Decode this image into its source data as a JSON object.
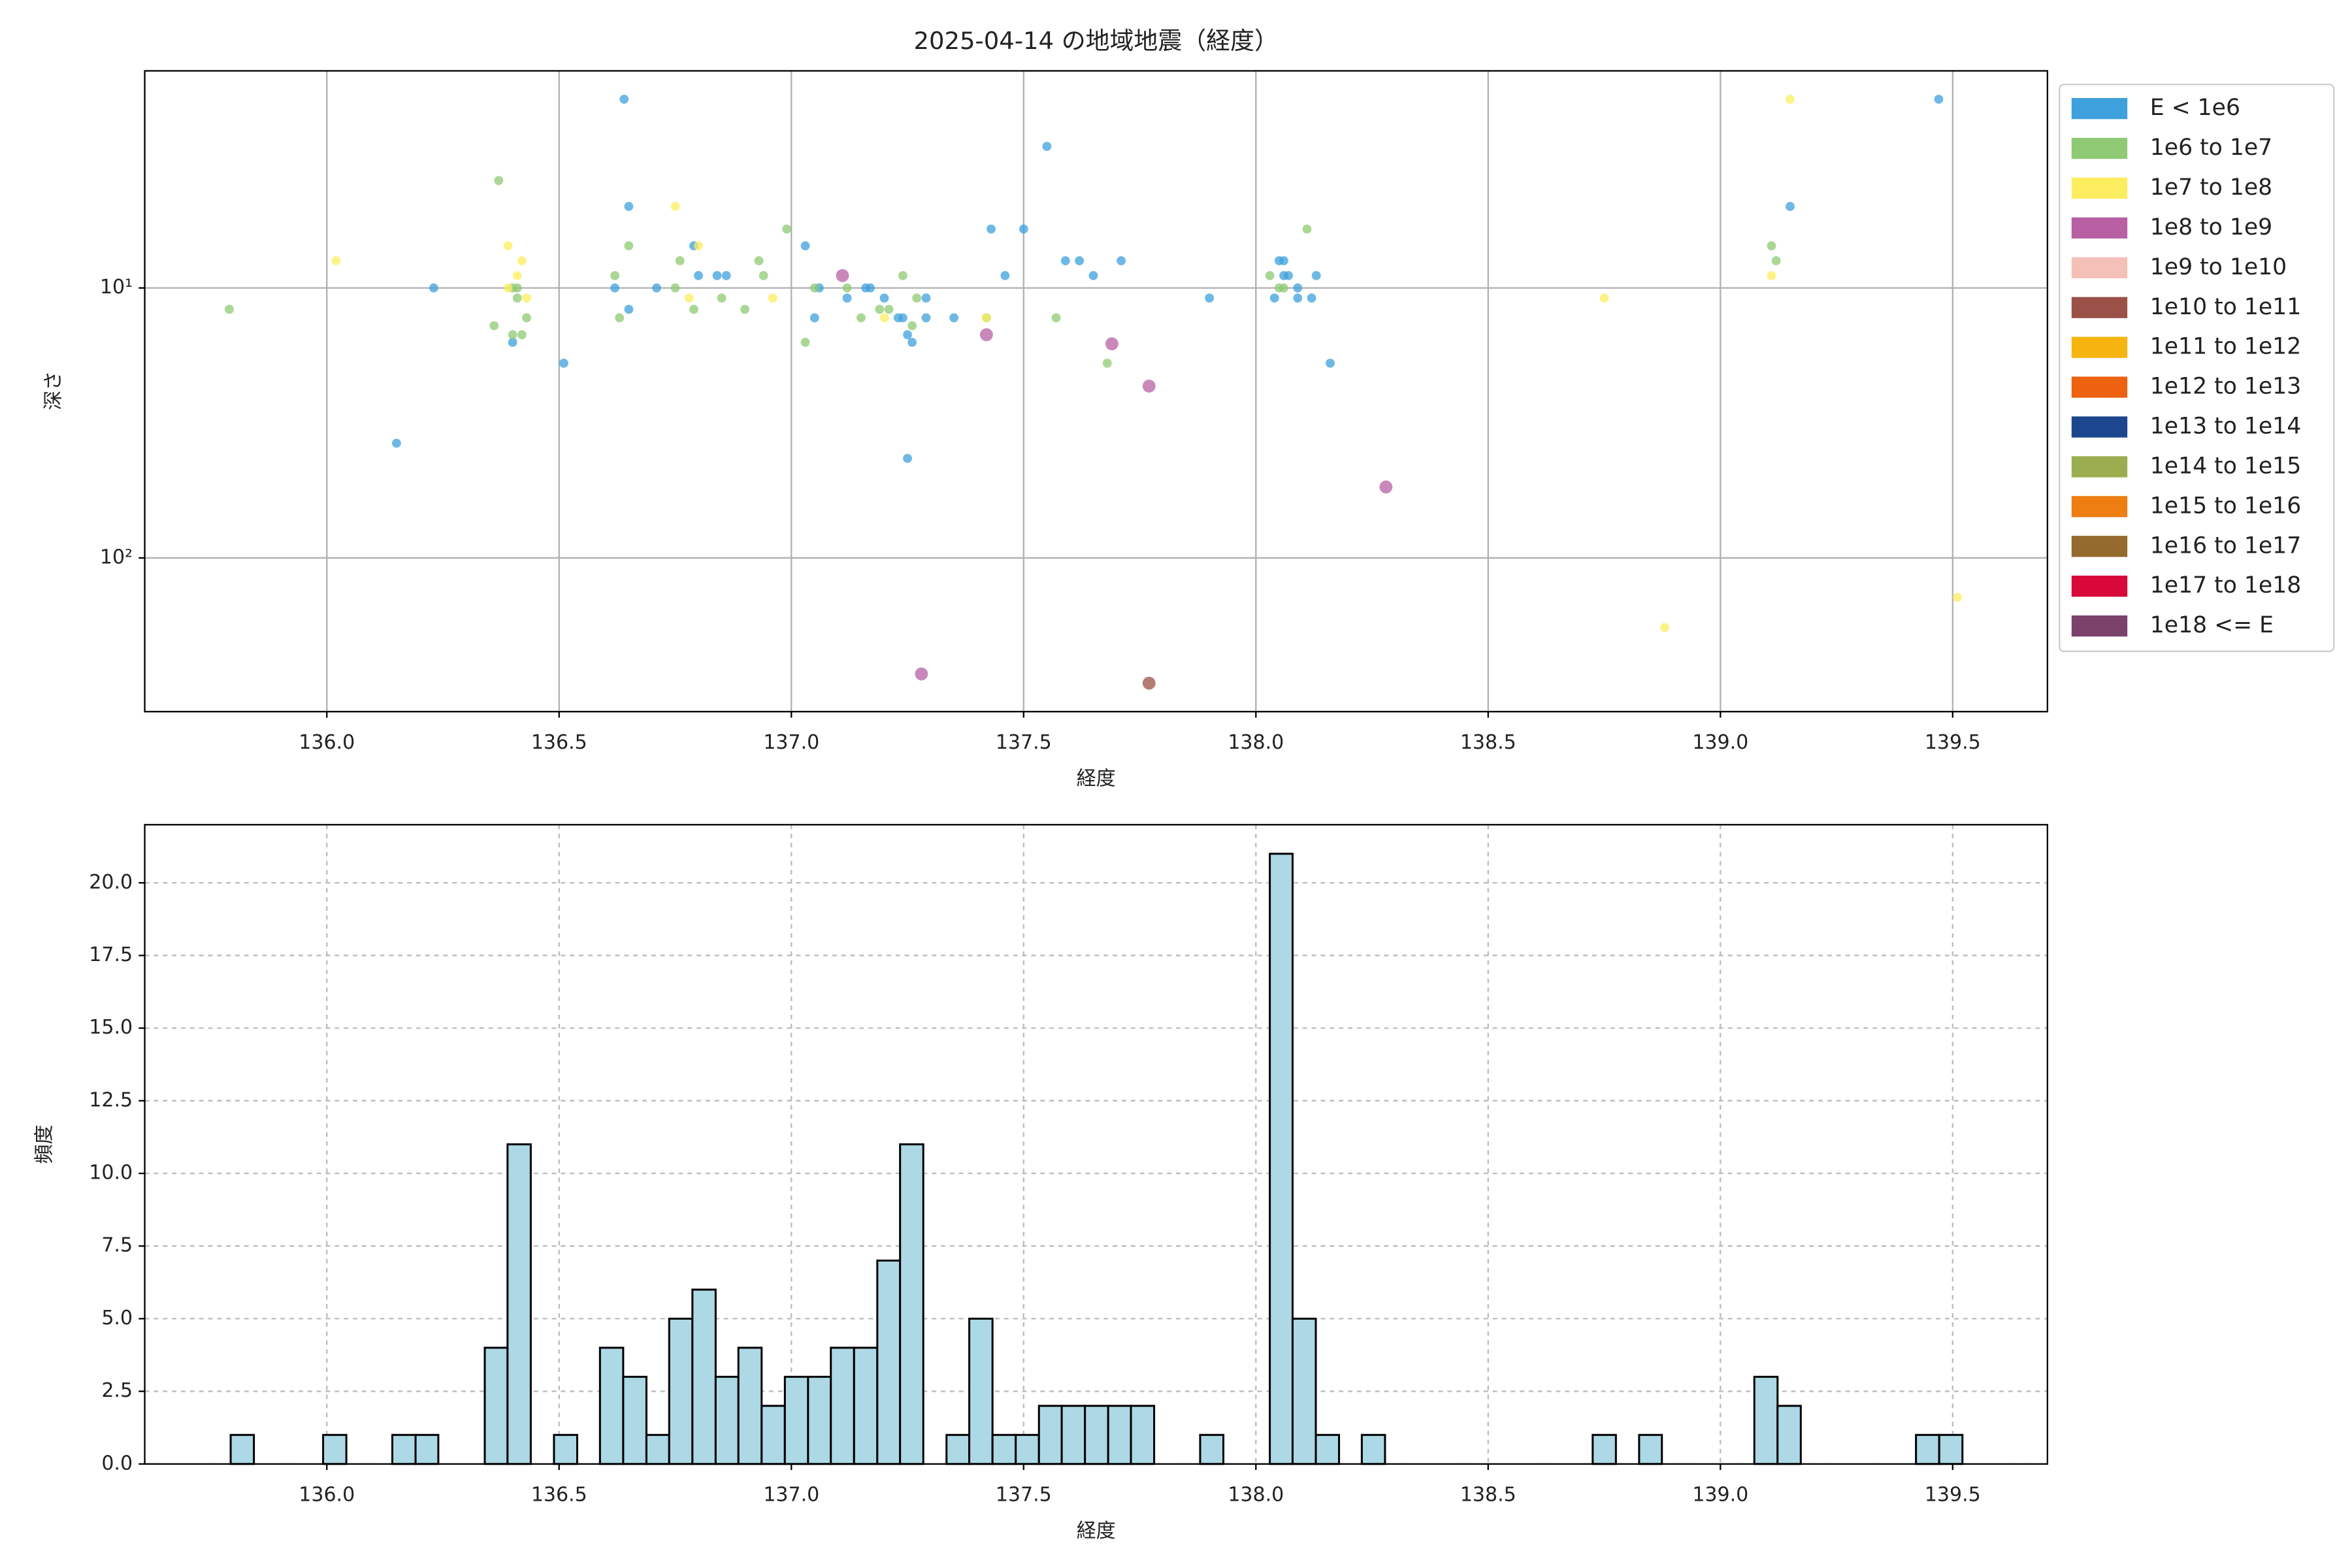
{
  "chart_data": [
    {
      "type": "scatter",
      "title": "2025-04-14 の地域地震（経度）",
      "x_label": "経度",
      "y_label": "深さ",
      "xlim": [
        135.608,
        139.704
      ],
      "xticks": [
        {
          "value": 136,
          "label": "136.0"
        },
        {
          "value": 136.5,
          "label": "136.5"
        },
        {
          "value": 137,
          "label": "137.0"
        },
        {
          "value": 137.5,
          "label": "137.5"
        },
        {
          "value": 138,
          "label": "138.0"
        },
        {
          "value": 138.5,
          "label": "138.5"
        },
        {
          "value": 139,
          "label": "139.0"
        },
        {
          "value": 139.5,
          "label": "139.5"
        }
      ],
      "ylim": [
        1.57,
        371
      ],
      "yscale": "log",
      "y_inverted": true,
      "yticks": [
        {
          "value": 10,
          "label": "10¹"
        },
        {
          "value": 100,
          "label": "10²"
        }
      ],
      "grid": true,
      "grid_style": "solid",
      "legend": "outside-right",
      "series": [
        {
          "name": "E < 1e6",
          "color": "#3ea0dc",
          "x": [
            136.64,
            139.47,
            137.55,
            136.65,
            139.15,
            137.43,
            137.5,
            136.79,
            137.03,
            137.59,
            137.62,
            137.71,
            137.46,
            137.65,
            136.86,
            136.84,
            136.8,
            138.06,
            138.07,
            138.13,
            136.23,
            136.62,
            136.71,
            137.06,
            137.16,
            137.17,
            138.09,
            137.2,
            137.29,
            137.12,
            137.9,
            138.04,
            138.09,
            138.12,
            136.65,
            137.05,
            137.23,
            137.24,
            137.29,
            137.35,
            137.25,
            137.26,
            136.4,
            136.51,
            138.16,
            136.15,
            137.25,
            138.05,
            138.06
          ],
          "values": [
            2.0,
            2.0,
            2.99,
            4.99,
            4.99,
            6.05,
            6.05,
            6.98,
            6.98,
            7.93,
            7.93,
            7.93,
            9.0,
            9.0,
            9.0,
            9.0,
            9.0,
            9.0,
            9.0,
            9.0,
            10,
            10,
            10,
            10,
            10,
            10,
            10,
            10.9,
            10.9,
            10.9,
            10.9,
            10.9,
            10.9,
            10.9,
            12.0,
            12.9,
            12.9,
            12.9,
            12.9,
            12.9,
            14.9,
            15.9,
            15.9,
            19.0,
            19.0,
            37.6,
            42.8,
            7.93,
            7.93
          ]
        },
        {
          "name": "1e6 to 1e7",
          "color": "#8fc973",
          "x": [
            136.37,
            138.11,
            136.99,
            136.65,
            139.11,
            136.93,
            136.76,
            139.12,
            136.62,
            136.94,
            137.24,
            138.03,
            136.4,
            136.41,
            136.75,
            137.05,
            137.12,
            138.05,
            135.79,
            136.41,
            136.85,
            137.27,
            138.06,
            137.19,
            137.21,
            136.79,
            136.9,
            136.43,
            136.63,
            137.15,
            137.57,
            137.42,
            136.36,
            137.26,
            136.4,
            136.42,
            137.03,
            137.68
          ],
          "values": [
            4.0,
            6.05,
            6.05,
            6.98,
            6.98,
            7.93,
            7.93,
            7.93,
            9.0,
            9.0,
            9.0,
            9.0,
            10,
            10,
            10,
            10,
            10,
            10,
            12.0,
            10.9,
            10.9,
            10.9,
            10,
            12.0,
            12.0,
            12.0,
            12.0,
            12.9,
            12.9,
            12.9,
            12.9,
            12.9,
            13.8,
            13.8,
            14.9,
            14.9,
            15.9,
            19.0
          ]
        },
        {
          "name": "1e7 to 1e8",
          "color": "#fced5e",
          "x": [
            139.15,
            136.75,
            136.39,
            136.8,
            136.42,
            136.02,
            136.41,
            136.39,
            136.43,
            136.78,
            136.96,
            138.75,
            139.11,
            137.2,
            137.42,
            138.88,
            139.51
          ],
          "values": [
            2.0,
            4.99,
            6.98,
            6.98,
            7.93,
            7.93,
            9.0,
            10,
            10.9,
            10.9,
            10.9,
            10.9,
            9.0,
            12.9,
            12.9,
            181,
            140
          ]
        },
        {
          "name": "1e8 to 1e9",
          "color": "#b860a3",
          "x": [
            137.11,
            137.69,
            137.42,
            137.77,
            138.28,
            137.28
          ],
          "values": [
            9.0,
            16.1,
            14.9,
            23.1,
            54.6,
            269
          ]
        },
        {
          "name": "1e9 to 1e10",
          "color": "#f4c0b8",
          "x": [],
          "values": []
        },
        {
          "name": "1e10 to 1e11",
          "color": "#9a5248",
          "x": [
            137.77
          ],
          "values": [
            291
          ]
        },
        {
          "name": "1e11 to 1e12",
          "color": "#f5b40f",
          "x": [],
          "values": []
        },
        {
          "name": "1e12 to 1e13",
          "color": "#ec6210",
          "x": [],
          "values": []
        },
        {
          "name": "1e13 to 1e14",
          "color": "#1c478e",
          "x": [],
          "values": []
        },
        {
          "name": "1e14 to 1e15",
          "color": "#9aae4f",
          "x": [],
          "values": []
        },
        {
          "name": "1e15 to 1e16",
          "color": "#ee7d12",
          "x": [],
          "values": []
        },
        {
          "name": "1e16 to 1e17",
          "color": "#946a2d",
          "x": [],
          "values": []
        },
        {
          "name": "1e17 to 1e18",
          "color": "#d9083a",
          "x": [],
          "values": []
        },
        {
          "name": "1e18 <= E",
          "color": "#7a416b",
          "x": [],
          "values": []
        }
      ]
    },
    {
      "type": "histogram",
      "x_label": "経度",
      "y_label": "頻度",
      "color": "#add8e6",
      "edge_color": "#000000",
      "xlim": [
        135.608,
        139.704
      ],
      "xticks": [
        {
          "value": 136,
          "label": "136.0"
        },
        {
          "value": 136.5,
          "label": "136.5"
        },
        {
          "value": 137,
          "label": "137.0"
        },
        {
          "value": 137.5,
          "label": "137.5"
        },
        {
          "value": 138,
          "label": "138.0"
        },
        {
          "value": 138.5,
          "label": "138.5"
        },
        {
          "value": 139,
          "label": "139.0"
        },
        {
          "value": 139.5,
          "label": "139.5"
        }
      ],
      "ylim": [
        0,
        22
      ],
      "yticks": [
        {
          "value": 0,
          "label": "0.0"
        },
        {
          "value": 2.5,
          "label": "2.5"
        },
        {
          "value": 5,
          "label": "5.0"
        },
        {
          "value": 7.5,
          "label": "7.5"
        },
        {
          "value": 10,
          "label": "10.0"
        },
        {
          "value": 12.5,
          "label": "12.5"
        },
        {
          "value": 15,
          "label": "15.0"
        },
        {
          "value": 17.5,
          "label": "17.5"
        },
        {
          "value": 20,
          "label": "20.0"
        }
      ],
      "grid": true,
      "grid_style": "dashed",
      "bins": [
        135.793,
        135.843,
        135.892,
        135.942,
        135.992,
        136.042,
        136.091,
        136.141,
        136.191,
        136.24,
        136.29,
        136.34,
        136.389,
        136.439,
        136.489,
        136.539,
        136.588,
        136.638,
        136.688,
        136.737,
        136.787,
        136.837,
        136.886,
        136.936,
        136.986,
        137.036,
        137.085,
        137.135,
        137.185,
        137.234,
        137.284,
        137.334,
        137.383,
        137.433,
        137.483,
        137.533,
        137.582,
        137.632,
        137.682,
        137.731,
        137.781,
        137.831,
        137.88,
        137.93,
        137.98,
        138.03,
        138.079,
        138.129,
        138.179,
        138.228,
        138.278,
        138.328,
        138.377,
        138.427,
        138.477,
        138.527,
        138.576,
        138.626,
        138.676,
        138.725,
        138.775,
        138.825,
        138.874,
        138.924,
        138.974,
        139.024,
        139.073,
        139.123,
        139.173,
        139.222,
        139.272,
        139.322,
        139.371,
        139.421,
        139.471,
        139.521
      ],
      "values": [
        1,
        0,
        0,
        0,
        1,
        0,
        0,
        1,
        1,
        0,
        0,
        4,
        11,
        0,
        1,
        0,
        4,
        3,
        1,
        5,
        6,
        3,
        4,
        2,
        3,
        3,
        4,
        4,
        7,
        11,
        0,
        1,
        5,
        1,
        1,
        2,
        2,
        2,
        2,
        2,
        0,
        0,
        1,
        0,
        0,
        21,
        5,
        1,
        0,
        1,
        0,
        0,
        0,
        0,
        0,
        0,
        0,
        0,
        0,
        1,
        0,
        1,
        0,
        0,
        0,
        0,
        3,
        2,
        0,
        0,
        0,
        0,
        0,
        1,
        1
      ]
    }
  ]
}
